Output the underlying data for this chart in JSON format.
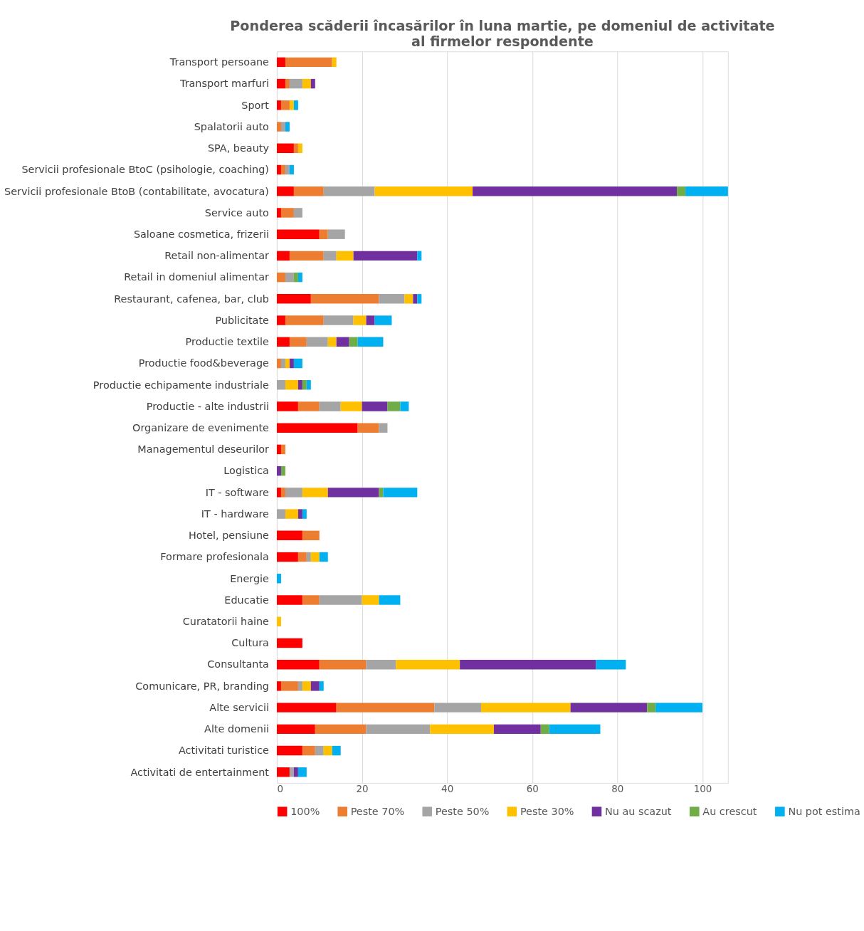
{
  "chart_data": {
    "type": "bar",
    "orientation": "horizontal",
    "stacked": true,
    "title": "Ponderea scăderii încasărilor în luna martie, pe domeniul de activitate al firmelor respondente",
    "categories": [
      "Transport persoane",
      "Transport marfuri",
      "Sport",
      "Spalatorii auto",
      "SPA, beauty",
      "Servicii profesionale BtoC (psihologie, coaching)",
      "Servicii profesionale BtoB (contabilitate, avocatura)",
      "Service auto",
      "Saloane cosmetica, frizerii",
      "Retail non-alimentar",
      "Retail in domeniul alimentar",
      "Restaurant, cafenea, bar, club",
      "Publicitate",
      "Productie textile",
      "Productie food&beverage",
      "Productie echipamente industriale",
      "Productie - alte industrii",
      "Organizare de evenimente",
      "Managementul deseurilor",
      "Logistica",
      "IT - software",
      "IT - hardware",
      "Hotel, pensiune",
      "Formare profesionala",
      "Energie",
      "Educatie",
      "Curatatorii haine",
      "Cultura",
      "Consultanta",
      "Comunicare, PR, branding",
      "Alte servicii",
      "Alte domenii",
      "Activitati turistice",
      "Activitati de entertainment"
    ],
    "series": [
      {
        "name": "100%",
        "color": "#ff0000",
        "values": [
          2,
          2,
          1,
          0,
          4,
          1,
          4,
          1,
          10,
          3,
          0,
          8,
          2,
          3,
          0,
          0,
          5,
          19,
          1,
          0,
          1,
          0,
          6,
          5,
          0,
          6,
          0,
          6,
          10,
          1,
          14,
          9,
          6,
          3
        ]
      },
      {
        "name": "Peste 70%",
        "color": "#ed7d31",
        "values": [
          11,
          1,
          2,
          1,
          1,
          1,
          7,
          3,
          2,
          8,
          2,
          16,
          9,
          4,
          1,
          0,
          5,
          5,
          1,
          0,
          1,
          0,
          4,
          2,
          0,
          4,
          0,
          0,
          11,
          4,
          23,
          12,
          3,
          0
        ]
      },
      {
        "name": "Peste 50%",
        "color": "#a5a5a5",
        "values": [
          0,
          3,
          0,
          1,
          0,
          1,
          12,
          2,
          4,
          3,
          2,
          6,
          7,
          5,
          1,
          2,
          5,
          2,
          0,
          0,
          4,
          2,
          0,
          1,
          0,
          10,
          0,
          0,
          7,
          1,
          11,
          15,
          2,
          1
        ]
      },
      {
        "name": "Peste 30%",
        "color": "#ffc000",
        "values": [
          1,
          2,
          1,
          0,
          1,
          0,
          23,
          0,
          0,
          4,
          0,
          2,
          3,
          2,
          1,
          3,
          5,
          0,
          0,
          0,
          6,
          3,
          0,
          2,
          0,
          4,
          1,
          0,
          15,
          2,
          21,
          15,
          2,
          0
        ]
      },
      {
        "name": "Nu au scazut",
        "color": "#7030a0",
        "values": [
          0,
          1,
          0,
          0,
          0,
          0,
          48,
          0,
          0,
          15,
          0,
          1,
          2,
          3,
          1,
          1,
          6,
          0,
          0,
          1,
          12,
          1,
          0,
          0,
          0,
          0,
          0,
          0,
          32,
          2,
          18,
          11,
          0,
          1
        ]
      },
      {
        "name": "Au crescut",
        "color": "#70ad47",
        "values": [
          0,
          0,
          0,
          0,
          0,
          0,
          2,
          0,
          0,
          0,
          1,
          0,
          0,
          2,
          0,
          1,
          3,
          0,
          0,
          1,
          1,
          0,
          0,
          0,
          0,
          0,
          0,
          0,
          0,
          0,
          2,
          2,
          0,
          0
        ]
      },
      {
        "name": "Nu pot estima",
        "color": "#00b0f0",
        "values": [
          0,
          0,
          1,
          1,
          0,
          1,
          10,
          0,
          0,
          1,
          1,
          1,
          4,
          6,
          2,
          1,
          2,
          0,
          0,
          0,
          8,
          1,
          0,
          2,
          1,
          5,
          0,
          0,
          7,
          1,
          11,
          12,
          2,
          2
        ]
      }
    ],
    "xlim": [
      0,
      106
    ],
    "xticks": [
      0,
      20,
      40,
      60,
      80,
      100
    ],
    "grid": "x",
    "legend": "bottom"
  }
}
